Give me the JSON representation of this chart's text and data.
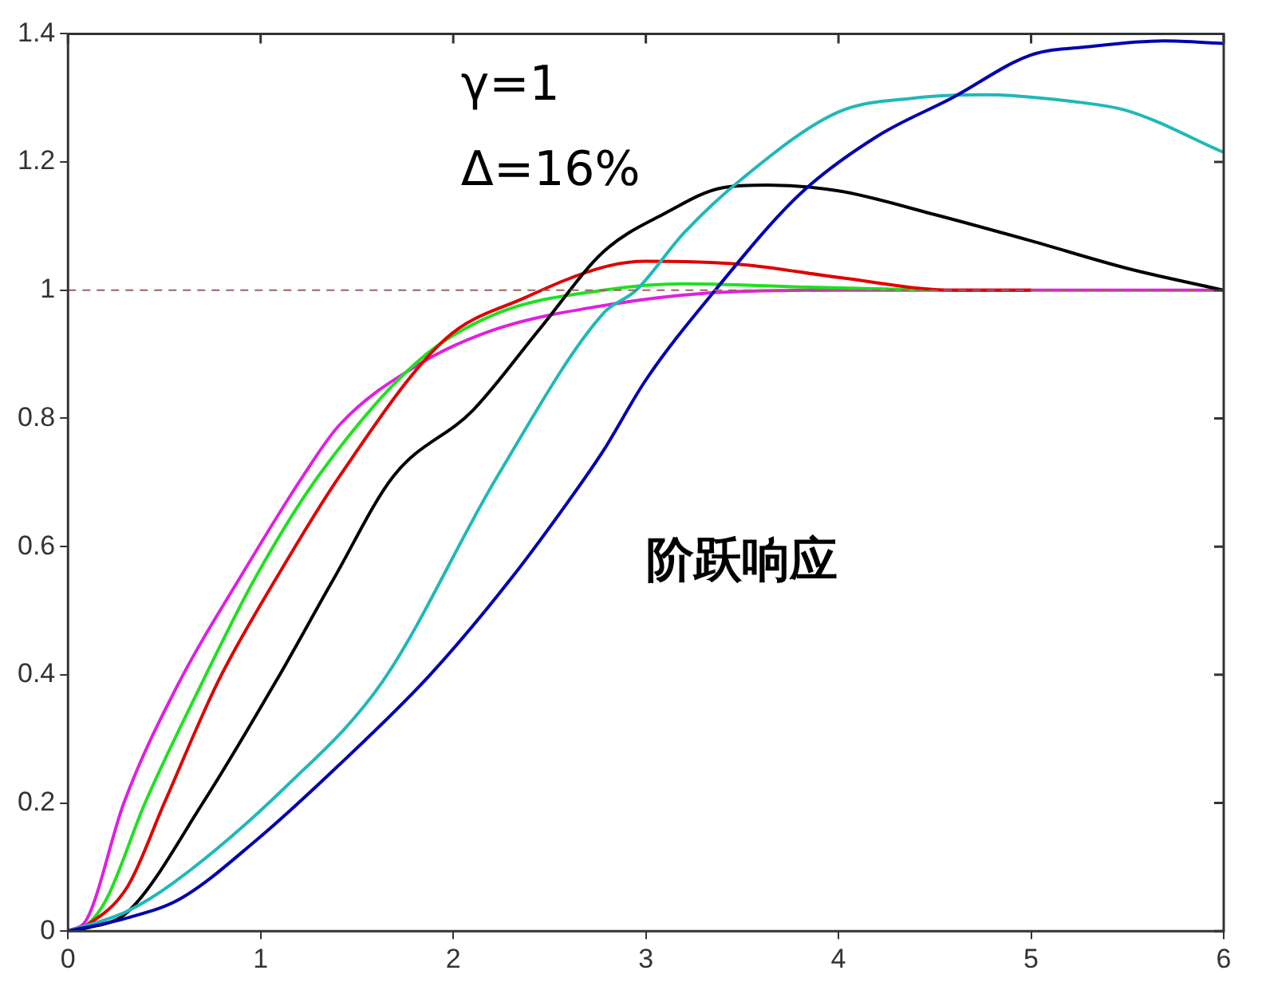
{
  "chart_data": {
    "type": "line",
    "xlim": [
      0,
      6
    ],
    "ylim": [
      0,
      1.4
    ],
    "xticks": [
      0,
      1,
      2,
      3,
      4,
      5,
      6
    ],
    "yticks": [
      0,
      0.2,
      0.4,
      0.6,
      0.8,
      1,
      1.2,
      1.4
    ],
    "grid": false,
    "marker": "none",
    "annotations": [
      "γ=1",
      "Δ=16%",
      "阶跃响应"
    ],
    "ref_lines": [
      {
        "axis": "y",
        "value": 1,
        "color": "#a06060",
        "line_style": "dashed"
      }
    ],
    "series": [
      {
        "color": "#0000b0",
        "x": [
          0,
          0.3,
          0.58,
          0.97,
          1.41,
          1.88,
          2.3,
          2.62,
          2.78,
          3.0,
          3.36,
          3.8,
          4.2,
          4.59,
          5.0,
          5.3,
          5.69,
          6.0
        ],
        "values": [
          0,
          0.02,
          0.05,
          0.14,
          0.26,
          0.4,
          0.55,
          0.68,
          0.75,
          0.86,
          1.0,
          1.15,
          1.24,
          1.3,
          1.367,
          1.38,
          1.389,
          1.385
        ]
      },
      {
        "color": "#20b8b8",
        "x": [
          0,
          0.3,
          0.55,
          1.14,
          1.63,
          2.23,
          2.78,
          2.95,
          3.2,
          3.5,
          4.0,
          4.4,
          4.76,
          5.2,
          5.5,
          6.0
        ],
        "values": [
          0,
          0.03,
          0.076,
          0.228,
          0.388,
          0.71,
          0.964,
          1.0,
          1.09,
          1.174,
          1.278,
          1.3,
          1.305,
          1.295,
          1.28,
          1.215
        ]
      },
      {
        "color": "#000000",
        "x": [
          0,
          0.1,
          0.31,
          0.7,
          1.08,
          1.38,
          1.69,
          2.1,
          2.45,
          2.78,
          3.1,
          3.4,
          3.63,
          4.0,
          4.5,
          5.0,
          5.5,
          6.0
        ],
        "values": [
          0,
          0.005,
          0.03,
          0.2,
          0.39,
          0.55,
          0.71,
          0.812,
          0.94,
          1.06,
          1.12,
          1.16,
          1.164,
          1.155,
          1.118,
          1.077,
          1.034,
          1.0
        ]
      },
      {
        "color": "#e00000",
        "x": [
          0,
          0.1,
          0.31,
          0.5,
          0.78,
          1.08,
          1.41,
          1.96,
          2.37,
          2.78,
          3.0,
          3.5,
          4.0,
          4.6,
          5.0
        ],
        "values": [
          0,
          0.01,
          0.07,
          0.2,
          0.39,
          0.55,
          0.71,
          0.924,
          0.988,
          1.036,
          1.045,
          1.04,
          1.02,
          1.0,
          1.0
        ]
      },
      {
        "color": "#20e020",
        "x": [
          0,
          0.1,
          0.2,
          0.4,
          0.7,
          0.97,
          1.3,
          1.82,
          2.23,
          2.78,
          3.2,
          3.8,
          4.5
        ],
        "values": [
          0,
          0.01,
          0.05,
          0.2,
          0.39,
          0.55,
          0.71,
          0.89,
          0.964,
          1.0,
          1.01,
          1.005,
          1.0
        ]
      },
      {
        "color": "#e020e0",
        "x": [
          0,
          0.1,
          0.29,
          0.58,
          0.89,
          1.22,
          1.41,
          1.82,
          2.23,
          2.78,
          3.3,
          4.0,
          5.0,
          6.0
        ],
        "values": [
          0,
          0.02,
          0.2,
          0.39,
          0.55,
          0.71,
          0.79,
          0.884,
          0.94,
          0.976,
          0.995,
          1.0,
          1.0,
          1.0
        ]
      }
    ]
  }
}
